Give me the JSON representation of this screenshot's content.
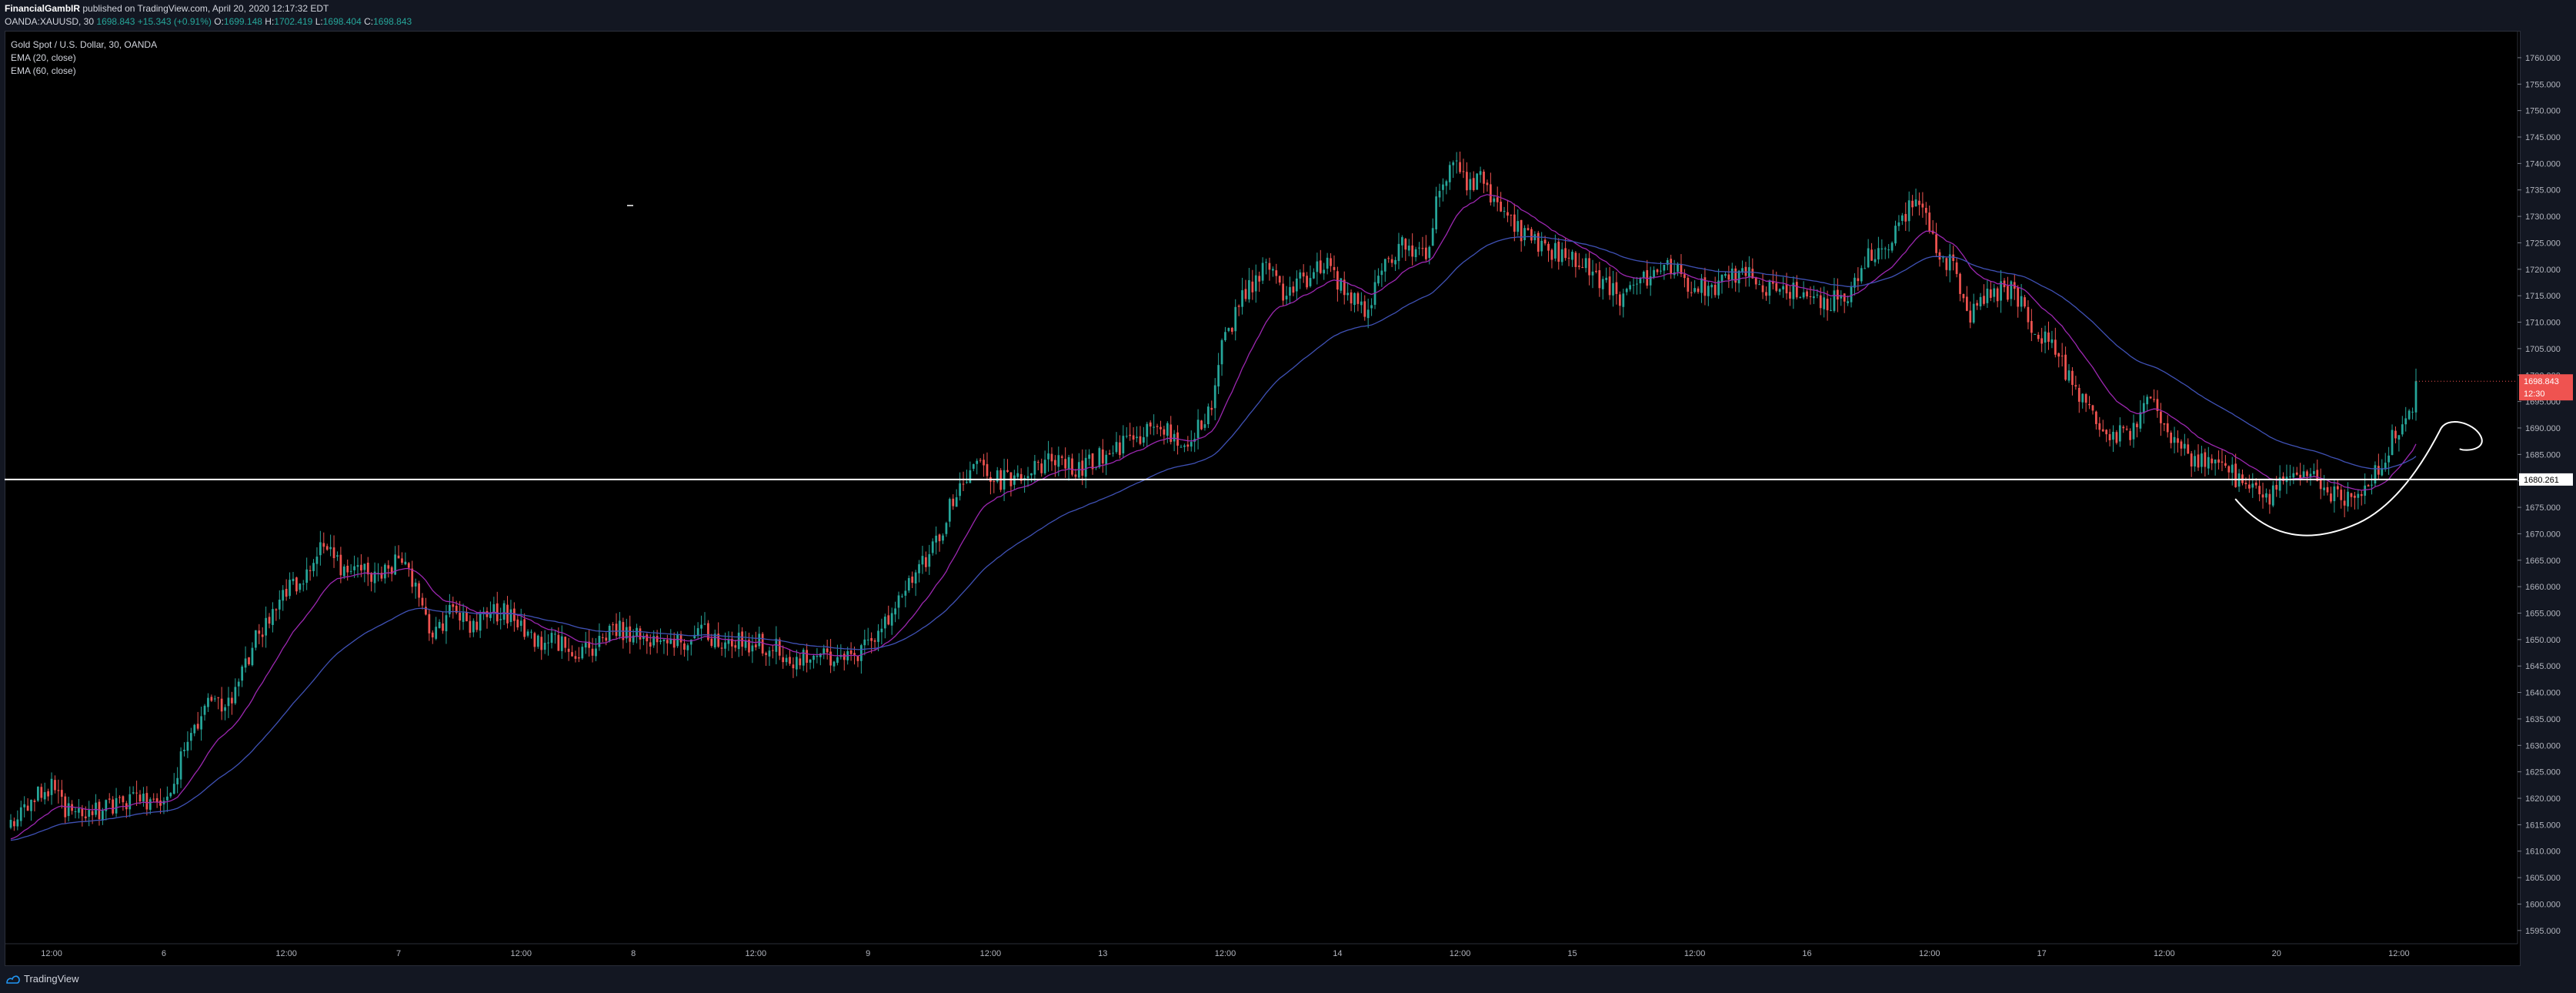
{
  "header": {
    "author": "FinancialGambIR",
    "published": " published on TradingView.com, April 20, 2020 12:17:32 EDT",
    "symbol": "OANDA:XAUUSD, 30",
    "last": "1698.843",
    "change": "+15.343 (+0.91%)",
    "o_label": "O:",
    "o_value": "1699.148",
    "h_label": "H:",
    "h_value": "1702.419",
    "l_label": "L:",
    "l_value": "1698.404",
    "c_label": "C:",
    "c_value": "1698.843"
  },
  "legend": {
    "title": "Gold Spot / U.S. Dollar, 30, OANDA",
    "ema1": "EMA (20, close)",
    "ema2": "EMA (60, close)"
  },
  "footer": {
    "brand": "TradingView"
  },
  "colors": {
    "up": "#26a69a",
    "down": "#ef5350",
    "ema20": "#9c27b0",
    "ema60": "#3f51b5",
    "price_tag": "#ef5350",
    "hline": "#ffffff"
  },
  "chart_data": {
    "type": "candlestick",
    "symbol": "XAUUSD",
    "interval": "30",
    "ylim": [
      1592.5,
      1764.5
    ],
    "y_ticks": [
      "1595.000",
      "1600.000",
      "1605.000",
      "1610.000",
      "1615.000",
      "1620.000",
      "1625.000",
      "1630.000",
      "1635.000",
      "1640.000",
      "1645.000",
      "1650.000",
      "1655.000",
      "1660.000",
      "1665.000",
      "1670.000",
      "1675.000",
      "1680.000",
      "1685.000",
      "1690.000",
      "1695.000",
      "1700.000",
      "1705.000",
      "1710.000",
      "1715.000",
      "1720.000",
      "1725.000",
      "1730.000",
      "1735.000",
      "1740.000",
      "1745.000",
      "1750.000",
      "1755.000",
      "1760.000"
    ],
    "x_ticks": [
      {
        "label": "12:00",
        "bar": 12
      },
      {
        "label": "6",
        "bar": 45
      },
      {
        "label": "12:00",
        "bar": 81
      },
      {
        "label": "7",
        "bar": 114
      },
      {
        "label": "12:00",
        "bar": 150
      },
      {
        "label": "8",
        "bar": 183
      },
      {
        "label": "12:00",
        "bar": 219
      },
      {
        "label": "9",
        "bar": 252
      },
      {
        "label": "12:00",
        "bar": 288
      },
      {
        "label": "13",
        "bar": 321
      },
      {
        "label": "12:00",
        "bar": 357
      },
      {
        "label": "14",
        "bar": 390
      },
      {
        "label": "12:00",
        "bar": 426
      },
      {
        "label": "15",
        "bar": 459
      },
      {
        "label": "12:00",
        "bar": 495
      },
      {
        "label": "16",
        "bar": 528
      },
      {
        "label": "12:00",
        "bar": 564
      },
      {
        "label": "17",
        "bar": 597
      },
      {
        "label": "12:00",
        "bar": 633
      },
      {
        "label": "20",
        "bar": 666
      },
      {
        "label": "12:00",
        "bar": 702
      }
    ],
    "close_anchors": [
      [
        0,
        1614
      ],
      [
        6,
        1620
      ],
      [
        12,
        1622
      ],
      [
        18,
        1616
      ],
      [
        25,
        1618
      ],
      [
        35,
        1619
      ],
      [
        45,
        1620
      ],
      [
        52,
        1630
      ],
      [
        58,
        1637
      ],
      [
        66,
        1640
      ],
      [
        72,
        1650
      ],
      [
        80,
        1658
      ],
      [
        87,
        1663
      ],
      [
        92,
        1668
      ],
      [
        96,
        1664
      ],
      [
        102,
        1664
      ],
      [
        108,
        1661
      ],
      [
        114,
        1665
      ],
      [
        119,
        1660
      ],
      [
        124,
        1650
      ],
      [
        130,
        1656
      ],
      [
        136,
        1652
      ],
      [
        142,
        1655
      ],
      [
        148,
        1655
      ],
      [
        154,
        1650
      ],
      [
        160,
        1650
      ],
      [
        166,
        1648
      ],
      [
        172,
        1648
      ],
      [
        178,
        1652
      ],
      [
        184,
        1651
      ],
      [
        190,
        1650
      ],
      [
        196,
        1649
      ],
      [
        202,
        1652
      ],
      [
        208,
        1649
      ],
      [
        214,
        1650
      ],
      [
        220,
        1649
      ],
      [
        226,
        1648
      ],
      [
        232,
        1646
      ],
      [
        238,
        1647
      ],
      [
        244,
        1647
      ],
      [
        250,
        1648
      ],
      [
        256,
        1652
      ],
      [
        262,
        1658
      ],
      [
        268,
        1664
      ],
      [
        273,
        1670
      ],
      [
        278,
        1678
      ],
      [
        283,
        1683
      ],
      [
        290,
        1680
      ],
      [
        298,
        1681
      ],
      [
        306,
        1684
      ],
      [
        314,
        1682
      ],
      [
        322,
        1685
      ],
      [
        330,
        1688
      ],
      [
        338,
        1690
      ],
      [
        346,
        1688
      ],
      [
        352,
        1692
      ],
      [
        356,
        1705
      ],
      [
        362,
        1714
      ],
      [
        368,
        1720
      ],
      [
        374,
        1716
      ],
      [
        380,
        1718
      ],
      [
        386,
        1722
      ],
      [
        392,
        1716
      ],
      [
        398,
        1712
      ],
      [
        404,
        1720
      ],
      [
        410,
        1725
      ],
      [
        416,
        1722
      ],
      [
        420,
        1736
      ],
      [
        424,
        1740
      ],
      [
        428,
        1736
      ],
      [
        433,
        1737
      ],
      [
        438,
        1730
      ],
      [
        444,
        1727
      ],
      [
        450,
        1725
      ],
      [
        456,
        1722
      ],
      [
        462,
        1721
      ],
      [
        468,
        1718
      ],
      [
        474,
        1714
      ],
      [
        480,
        1718
      ],
      [
        486,
        1722
      ],
      [
        492,
        1718
      ],
      [
        498,
        1716
      ],
      [
        504,
        1718
      ],
      [
        510,
        1720
      ],
      [
        516,
        1717
      ],
      [
        522,
        1716
      ],
      [
        528,
        1716
      ],
      [
        534,
        1714
      ],
      [
        540,
        1716
      ],
      [
        546,
        1722
      ],
      [
        552,
        1723
      ],
      [
        556,
        1730
      ],
      [
        560,
        1734
      ],
      [
        563,
        1730
      ],
      [
        566,
        1724
      ],
      [
        570,
        1721
      ],
      [
        576,
        1712
      ],
      [
        582,
        1716
      ],
      [
        588,
        1716
      ],
      [
        594,
        1710
      ],
      [
        600,
        1705
      ],
      [
        606,
        1698
      ],
      [
        612,
        1693
      ],
      [
        618,
        1688
      ],
      [
        624,
        1690
      ],
      [
        629,
        1697
      ],
      [
        634,
        1690
      ],
      [
        640,
        1685
      ],
      [
        646,
        1683
      ],
      [
        652,
        1682
      ],
      [
        658,
        1678
      ],
      [
        664,
        1677
      ],
      [
        668,
        1680
      ],
      [
        674,
        1681
      ],
      [
        680,
        1679
      ],
      [
        686,
        1676
      ],
      [
        692,
        1679
      ],
      [
        696,
        1683
      ],
      [
        700,
        1688
      ],
      [
        704,
        1690
      ],
      [
        706,
        1693
      ],
      [
        707,
        1698.843
      ]
    ],
    "hline": 1680.261,
    "hline_label": "1680.261",
    "last_price_label": "1698.843",
    "countdown_label": "12:30",
    "series": [
      {
        "name": "EMA (20, close)"
      },
      {
        "name": "EMA (60, close)"
      }
    ]
  }
}
